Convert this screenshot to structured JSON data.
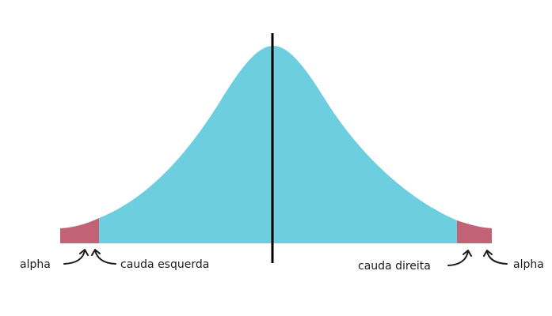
{
  "labels": {
    "left_alpha": "alpha",
    "left_tail": "cauda esquerda",
    "right_tail": "cauda direita",
    "right_alpha": "alpha"
  },
  "colors": {
    "curve_fill": "#6CCEDF",
    "tail_fill": "#C26375",
    "center_line": "#000000",
    "arrow": "#1a1a1a"
  },
  "icons": {
    "arrow": "curved-arrow-icon"
  }
}
